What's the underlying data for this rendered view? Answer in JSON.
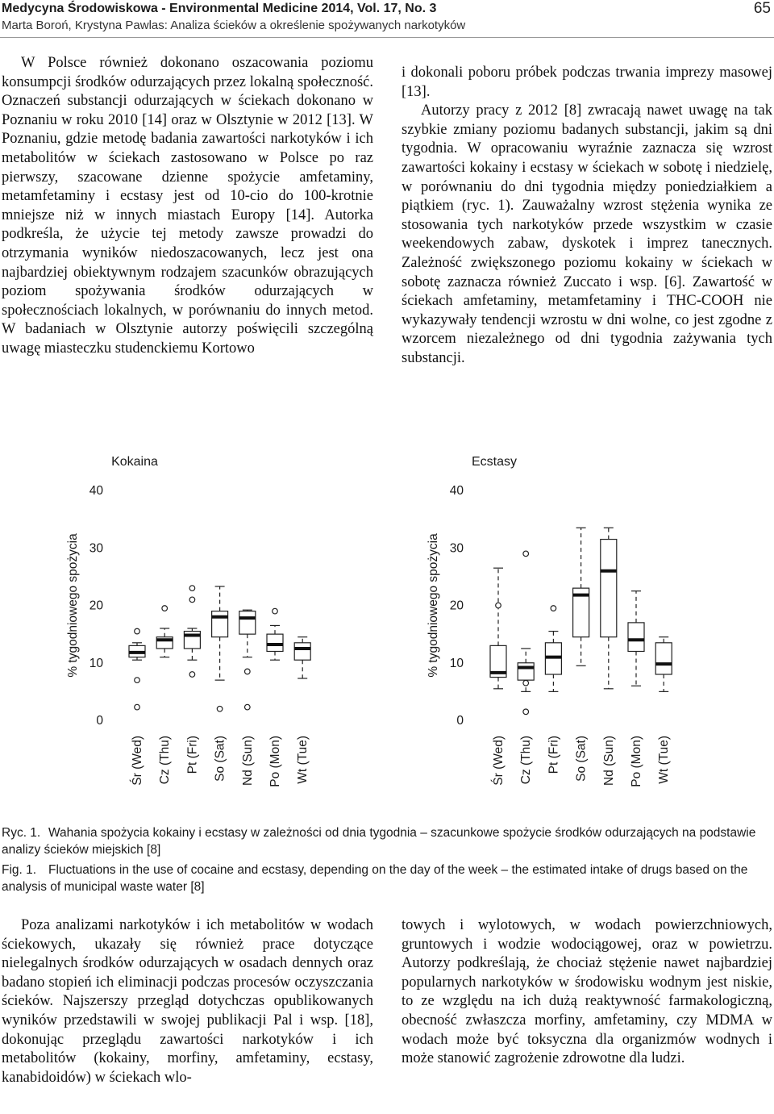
{
  "header": {
    "journal": "Medycyna Środowiskowa - Environmental Medicine 2014, Vol. 17, No. 3",
    "page_number": "65",
    "authors_title": "Marta Boroń, Krystyna Pawlas: Analiza ścieków a określenie spożywanych narkotyków"
  },
  "text": {
    "left_top": "W Polsce również dokonano oszacowania poziomu konsumpcji środków odurzających przez lokalną społeczność. Oznaczeń substancji odurzających w ściekach dokonano w Poznaniu w roku 2010 [14] oraz w Olsztynie w 2012 [13]. W Poznaniu, gdzie metodę badania zawartości narkotyków i ich metabolitów w ściekach zastosowano w Polsce po raz pierwszy, szacowane dzienne spożycie amfetaminy, metamfetaminy i ecstasy jest od 10-cio do 100-krotnie mniejsze niż w innych miastach Europy [14]. Autorka podkreśla, że użycie tej metody zawsze prowadzi do otrzymania wyników niedoszacowanych, lecz jest ona najbardziej obiektywnym rodzajem szacunków obrazujących poziom spożywania środków odurzających w społecznościach lokalnych, w porównaniu do innych metod. W badaniach w Olsztynie autorzy poświęcili szczególną uwagę miasteczku studenckiemu Kortowo",
    "right_top_p1": "i dokonali poboru próbek podczas trwania imprezy masowej [13].",
    "right_top_p2": "Autorzy pracy z 2012 [8] zwracają nawet uwagę na tak szybkie zmiany poziomu badanych substancji, jakim są dni tygodnia. W opracowaniu wyraźnie zaznacza się wzrost zawartości kokainy i ecstasy w ściekach w sobotę i niedzielę, w porównaniu do dni tygodnia między poniedziałkiem a piątkiem (ryc. 1). Zauważalny wzrost stężenia wynika ze stosowania tych narkotyków przede wszystkim w czasie weekendowych zabaw, dyskotek i imprez tanecznych. Zależność zwiększonego poziomu kokainy w ściekach w sobotę zaznacza również Zuccato i wsp. [6]. Zawartość w ściekach amfetaminy, metamfetaminy i THC-COOH nie wykazywały tendencji wzrostu w dni wolne, co jest zgodne z wzorcem niezależnego od dni tygodnia zażywania tych substancji.",
    "left_bottom": "Poza analizami narkotyków i ich metabolitów w wodach ściekowych, ukazały się również prace dotyczące nielegalnych środków odurzających w osadach dennych oraz badano stopień ich eliminacji podczas procesów oczyszczania ścieków. Najszerszy przegląd dotychczas opublikowanych wyników przedstawili w swojej publikacji Pal i wsp. [18], dokonując przeglądu zawartości narkotyków i ich metabolitów (kokainy, morfiny, amfetaminy, ecstasy, kanabidoidów) w ściekach wlo-",
    "right_bottom": "towych i wylotowych, w wodach powierzchniowych, gruntowych i wodzie wodociągowej, oraz w powietrzu. Autorzy podkreślają, że chociaż stężenie nawet najbardziej popularnych narkotyków w środowisku wodnym jest niskie, to ze względu na ich dużą reaktywność farmakologiczną, obecność zwłaszcza morfiny, amfetaminy, czy MDMA w wodach może być toksyczna dla organizmów wodnych i może stanowić zagrożenie zdrowotne dla ludzi."
  },
  "caption": {
    "pl_label": "Ryc. 1.",
    "pl_text": "Wahania spożycia kokainy i ecstasy w zależności od dnia tygodnia – szacunkowe spożycie środków odurzających na podstawie analizy ścieków miejskich [8]",
    "en_label": "Fig. 1.",
    "en_text": "Fluctuations in the use of cocaine and ecstasy, depending on the day of the week – the estimated intake of drugs based on the analysis of  municipal waste water [8]"
  },
  "chart_data": [
    {
      "type": "boxplot",
      "title": "Kokaina",
      "ylabel": "% tygodniowego spożycia",
      "xlabel": "",
      "ylim": [
        0,
        40
      ],
      "yticks": [
        0,
        10,
        20,
        30,
        40
      ],
      "categories": [
        "Śr (Wed)",
        "Cz (Thu)",
        "Pt (Fri)",
        "So (Sat)",
        "Nd (Sun)",
        "Po (Mon)",
        "Wt (Tue)"
      ],
      "boxes": [
        {
          "whisker_low": 10.5,
          "q1": 11.0,
          "median": 11.8,
          "q3": 13.0,
          "whisker_high": 13.5,
          "outliers": [
            7.0,
            2.3,
            15.5
          ]
        },
        {
          "whisker_low": 11.0,
          "q1": 12.5,
          "median": 14.0,
          "q3": 14.5,
          "whisker_high": 16.0,
          "outliers": [
            19.5
          ]
        },
        {
          "whisker_low": 10.5,
          "q1": 12.5,
          "median": 14.8,
          "q3": 15.5,
          "whisker_high": 16.0,
          "outliers": [
            8.0,
            21.0,
            23.0
          ]
        },
        {
          "whisker_low": 7.0,
          "q1": 14.5,
          "median": 18.0,
          "q3": 19.0,
          "whisker_high": 23.3,
          "outliers": [
            2.0
          ]
        },
        {
          "whisker_low": 11.0,
          "q1": 15.0,
          "median": 17.8,
          "q3": 19.0,
          "whisker_high": 19.2,
          "outliers": [
            8.5,
            2.3
          ]
        },
        {
          "whisker_low": 10.5,
          "q1": 12.0,
          "median": 13.2,
          "q3": 15.0,
          "whisker_high": 16.5,
          "outliers": [
            19.0
          ]
        },
        {
          "whisker_low": 7.3,
          "q1": 10.5,
          "median": 12.5,
          "q3": 13.5,
          "whisker_high": 14.5,
          "outliers": []
        }
      ]
    },
    {
      "type": "boxplot",
      "title": "Ecstasy",
      "ylabel": "% tygodniowego spożycia",
      "xlabel": "",
      "ylim": [
        0,
        40
      ],
      "yticks": [
        0,
        10,
        20,
        30,
        40
      ],
      "categories": [
        "Śr (Wed)",
        "Cz (Thu)",
        "Pt (Fri)",
        "So (Sat)",
        "Nd (Sun)",
        "Po (Mon)",
        "Wt (Tue)"
      ],
      "boxes": [
        {
          "whisker_low": 5.5,
          "q1": 7.5,
          "median": 8.3,
          "q3": 13.0,
          "whisker_high": 26.5,
          "outliers": [
            20.0
          ]
        },
        {
          "whisker_low": 5.0,
          "q1": 7.0,
          "median": 9.2,
          "q3": 10.0,
          "whisker_high": 12.5,
          "outliers": [
            6.5,
            29.0,
            1.5
          ]
        },
        {
          "whisker_low": 5.0,
          "q1": 8.0,
          "median": 11.0,
          "q3": 13.5,
          "whisker_high": 15.5,
          "outliers": [
            19.5
          ]
        },
        {
          "whisker_low": 9.5,
          "q1": 14.5,
          "median": 21.8,
          "q3": 23.0,
          "whisker_high": 33.5,
          "outliers": []
        },
        {
          "whisker_low": 5.5,
          "q1": 14.5,
          "median": 26.0,
          "q3": 31.5,
          "whisker_high": 33.5,
          "outliers": []
        },
        {
          "whisker_low": 6.0,
          "q1": 12.0,
          "median": 14.0,
          "q3": 17.0,
          "whisker_high": 22.5,
          "outliers": []
        },
        {
          "whisker_low": 5.0,
          "q1": 8.0,
          "median": 9.8,
          "q3": 13.5,
          "whisker_high": 14.5,
          "outliers": []
        }
      ]
    }
  ]
}
